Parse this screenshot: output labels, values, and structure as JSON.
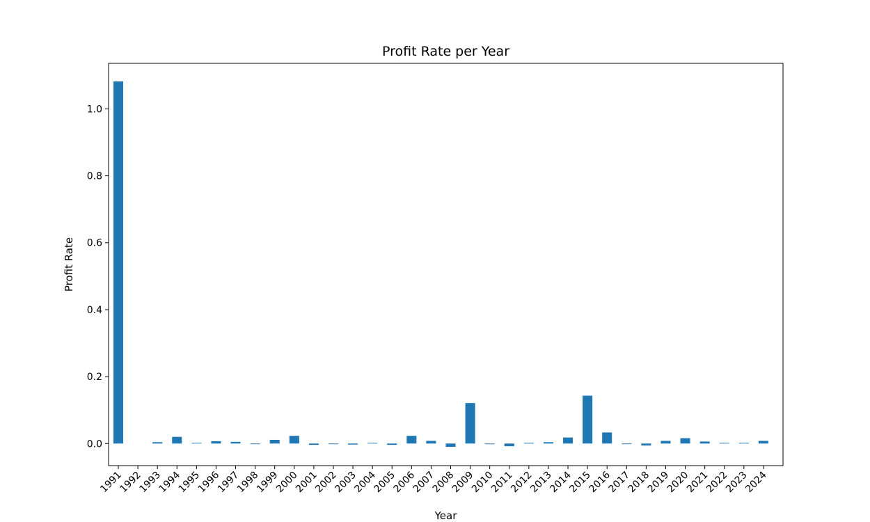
{
  "chart_data": {
    "type": "bar",
    "title": "Profit Rate per Year",
    "xlabel": "Year",
    "ylabel": "Profit Rate",
    "categories": [
      "1991",
      "1992",
      "1993",
      "1994",
      "1995",
      "1996",
      "1997",
      "1998",
      "1999",
      "2000",
      "2001",
      "2002",
      "2003",
      "2004",
      "2005",
      "2006",
      "2007",
      "2008",
      "2009",
      "2010",
      "2011",
      "2012",
      "2013",
      "2014",
      "2015",
      "2016",
      "2017",
      "2018",
      "2019",
      "2020",
      "2021",
      "2022",
      "2023",
      "2024"
    ],
    "values": [
      1.082,
      0.0,
      0.004,
      0.02,
      0.002,
      0.007,
      0.005,
      -0.002,
      0.011,
      0.023,
      -0.004,
      -0.002,
      -0.003,
      0.002,
      -0.004,
      0.023,
      0.008,
      -0.01,
      0.121,
      -0.002,
      -0.008,
      0.002,
      0.004,
      0.018,
      0.143,
      0.033,
      -0.002,
      -0.006,
      0.008,
      0.016,
      0.006,
      0.002,
      0.002,
      0.008
    ],
    "yticks": [
      0.0,
      0.2,
      0.4,
      0.6,
      0.8,
      1.0
    ],
    "ytick_labels": [
      "0.0",
      "0.2",
      "0.4",
      "0.6",
      "0.8",
      "1.0"
    ],
    "ylim": [
      -0.066,
      1.136
    ],
    "grid": false,
    "legend": "none",
    "bar_color": "#1f77b4"
  }
}
